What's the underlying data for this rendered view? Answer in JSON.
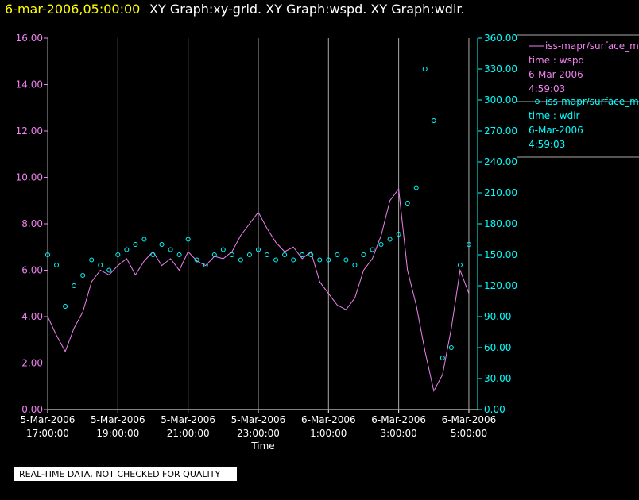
{
  "chart_data": {
    "type": "xy",
    "header_time": "6-mar-2006,05:00:00",
    "title": "XY Graph:xy-grid.  XY Graph:wspd.  XY Graph:wdir.",
    "xlabel": "Time",
    "footer": "REAL-TIME DATA, NOT CHECKED FOR QUALITY",
    "xlim": [
      "2006-03-05T17:00:00",
      "2006-03-06T05:15:00"
    ],
    "xticks": [
      {
        "value": "2006-03-05T17:00:00",
        "label": [
          "5-Mar-2006",
          "17:00:00"
        ]
      },
      {
        "value": "2006-03-05T19:00:00",
        "label": [
          "5-Mar-2006",
          "19:00:00"
        ]
      },
      {
        "value": "2006-03-05T21:00:00",
        "label": [
          "5-Mar-2006",
          "21:00:00"
        ]
      },
      {
        "value": "2006-03-05T23:00:00",
        "label": [
          "5-Mar-2006",
          "23:00:00"
        ]
      },
      {
        "value": "2006-03-06T01:00:00",
        "label": [
          "6-Mar-2006",
          "1:00:00"
        ]
      },
      {
        "value": "2006-03-06T03:00:00",
        "label": [
          "6-Mar-2006",
          "3:00:00"
        ]
      },
      {
        "value": "2006-03-06T05:00:00",
        "label": [
          "6-Mar-2006",
          "5:00:00"
        ]
      }
    ],
    "ylim": [
      0,
      16
    ],
    "yticks": [
      {
        "value": 0,
        "label": "0.00"
      },
      {
        "value": 2,
        "label": "2.00"
      },
      {
        "value": 4,
        "label": "4.00"
      },
      {
        "value": 6,
        "label": "6.00"
      },
      {
        "value": 8,
        "label": "8.00"
      },
      {
        "value": 10,
        "label": "10.00"
      },
      {
        "value": 12,
        "label": "12.00"
      },
      {
        "value": 14,
        "label": "14.00"
      },
      {
        "value": 16,
        "label": "16.00"
      }
    ],
    "y2lim": [
      0,
      360
    ],
    "y2ticks": [
      {
        "value": 0,
        "label": "0.00"
      },
      {
        "value": 30,
        "label": "30.00"
      },
      {
        "value": 60,
        "label": "60.00"
      },
      {
        "value": 90,
        "label": "90.00"
      },
      {
        "value": 120,
        "label": "120.00"
      },
      {
        "value": 150,
        "label": "150.00"
      },
      {
        "value": 180,
        "label": "180.00"
      },
      {
        "value": 210,
        "label": "210.00"
      },
      {
        "value": 240,
        "label": "240.00"
      },
      {
        "value": 270,
        "label": "270.00"
      },
      {
        "value": 300,
        "label": "300.00"
      },
      {
        "value": 330,
        "label": "330.00"
      },
      {
        "value": 360,
        "label": "360.00"
      }
    ],
    "grid": true,
    "x": [
      "2006-03-05T17:00:00",
      "2006-03-05T17:15:00",
      "2006-03-05T17:30:00",
      "2006-03-05T17:45:00",
      "2006-03-05T18:00:00",
      "2006-03-05T18:15:00",
      "2006-03-05T18:30:00",
      "2006-03-05T18:45:00",
      "2006-03-05T19:00:00",
      "2006-03-05T19:15:00",
      "2006-03-05T19:30:00",
      "2006-03-05T19:45:00",
      "2006-03-05T20:00:00",
      "2006-03-05T20:15:00",
      "2006-03-05T20:30:00",
      "2006-03-05T20:45:00",
      "2006-03-05T21:00:00",
      "2006-03-05T21:15:00",
      "2006-03-05T21:30:00",
      "2006-03-05T21:45:00",
      "2006-03-05T22:00:00",
      "2006-03-05T22:15:00",
      "2006-03-05T22:30:00",
      "2006-03-05T22:45:00",
      "2006-03-05T23:00:00",
      "2006-03-05T23:15:00",
      "2006-03-05T23:30:00",
      "2006-03-05T23:45:00",
      "2006-03-06T00:00:00",
      "2006-03-06T00:15:00",
      "2006-03-06T00:30:00",
      "2006-03-06T00:45:00",
      "2006-03-06T01:00:00",
      "2006-03-06T01:15:00",
      "2006-03-06T01:30:00",
      "2006-03-06T01:45:00",
      "2006-03-06T02:00:00",
      "2006-03-06T02:15:00",
      "2006-03-06T02:30:00",
      "2006-03-06T02:45:00",
      "2006-03-06T03:00:00",
      "2006-03-06T03:15:00",
      "2006-03-06T03:30:00",
      "2006-03-06T03:45:00",
      "2006-03-06T04:00:00",
      "2006-03-06T04:15:00",
      "2006-03-06T04:30:00",
      "2006-03-06T04:45:00",
      "2006-03-06T05:00:00"
    ],
    "series": [
      {
        "name": "iss-mapr/surface_met",
        "legend_lines": [
          "time : wspd",
          "6-Mar-2006",
          "4:59:03"
        ],
        "color": "#ee82ee",
        "style": "line",
        "axis": "y",
        "values": [
          4.0,
          3.2,
          2.5,
          3.5,
          4.2,
          5.5,
          6.0,
          5.8,
          6.2,
          6.5,
          5.8,
          6.4,
          6.8,
          6.2,
          6.5,
          6.0,
          6.8,
          6.4,
          6.2,
          6.6,
          6.5,
          6.8,
          7.5,
          8.0,
          8.5,
          7.8,
          7.2,
          6.8,
          7.0,
          6.5,
          6.8,
          5.5,
          5.0,
          4.5,
          4.3,
          4.8,
          6.0,
          6.5,
          7.5,
          9.0,
          9.5,
          6.0,
          4.5,
          2.5,
          0.8,
          1.5,
          3.5,
          6.0,
          5.0
        ]
      },
      {
        "name": "iss-mapr/surface_met",
        "legend_lines": [
          "time : wdir",
          "6-Mar-2006",
          "4:59:03"
        ],
        "color": "#00ffff",
        "style": "circle",
        "axis": "y2",
        "values": [
          150,
          140,
          100,
          120,
          130,
          145,
          140,
          135,
          150,
          155,
          160,
          165,
          150,
          160,
          155,
          150,
          165,
          145,
          140,
          150,
          155,
          150,
          145,
          150,
          155,
          150,
          145,
          150,
          145,
          150,
          150,
          145,
          145,
          150,
          145,
          140,
          150,
          155,
          160,
          165,
          170,
          200,
          215,
          330,
          280,
          50,
          60,
          140,
          160
        ]
      }
    ]
  }
}
